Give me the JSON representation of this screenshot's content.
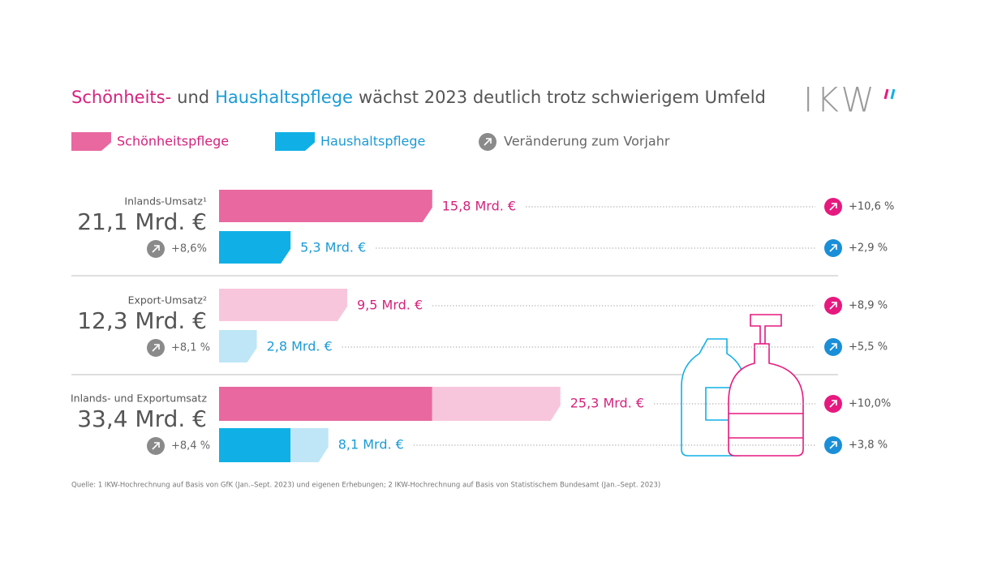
{
  "chart_data": {
    "type": "bar",
    "orientation": "horizontal",
    "title": [
      {
        "text": "Schönheits-",
        "color": "#d6227d"
      },
      {
        "text": "und",
        "color": "#555555"
      },
      {
        "text": "Haushaltspflege",
        "color": "#1a9bd6"
      },
      {
        "text": "wächst 2023 deutlich trotz schwierigem Umfeld",
        "color": "#555555"
      }
    ],
    "logo": "IKW",
    "series": [
      {
        "name": "Schönheitspflege",
        "color": "#e8689f",
        "light_color": "#f8c6dc",
        "text_color": "#d6227d",
        "icon_color": "#e6197f"
      },
      {
        "name": "Haushaltspflege",
        "color": "#10b0e6",
        "light_color": "#bfe6f7",
        "text_color": "#1a9bd6",
        "icon_color": "#1a8fd8"
      }
    ],
    "change_legend": "Veränderung zum Vorjahr",
    "groups": [
      {
        "label": "Inlands-Umsatz¹",
        "total": 21.1,
        "total_label": "21,1 Mrd. €",
        "change": 8.6,
        "change_label": "+8,6%",
        "values": [
          15.8,
          5.3
        ],
        "value_labels": [
          "15,8 Mrd. €",
          "5,3 Mrd. €"
        ],
        "changes": [
          10.6,
          2.9
        ],
        "change_labels": [
          "+10,6 %",
          "+2,9 %"
        ],
        "shade": "full"
      },
      {
        "label": "Export-Umsatz²",
        "total": 12.3,
        "total_label": "12,3 Mrd. €",
        "change": 8.1,
        "change_label": "+8,1 %",
        "values": [
          9.5,
          2.8
        ],
        "value_labels": [
          "9,5 Mrd. €",
          "2,8 Mrd. €"
        ],
        "changes": [
          8.9,
          5.5
        ],
        "change_labels": [
          "+8,9 %",
          "+5,5 %"
        ],
        "shade": "light"
      },
      {
        "label": "Inlands- und Exportumsatz",
        "total": 33.4,
        "total_label": "33,4 Mrd. €",
        "change": 8.4,
        "change_label": "+8,4 %",
        "values": [
          25.3,
          8.1
        ],
        "value_labels": [
          "25,3 Mrd. €",
          "8,1 Mrd. €"
        ],
        "changes": [
          10.0,
          3.8
        ],
        "change_labels": [
          "+10,0%",
          "+3,8 %"
        ],
        "stacked": true
      }
    ],
    "footnote": "Quelle: 1 IKW-Hochrechnung auf Basis von GfK (Jan.–Sept. 2023) und eigenen Erhebungen; 2 IKW-Hochrechnung auf Basis von Statistischem Bundesamt (Jan.–Sept. 2023)"
  }
}
